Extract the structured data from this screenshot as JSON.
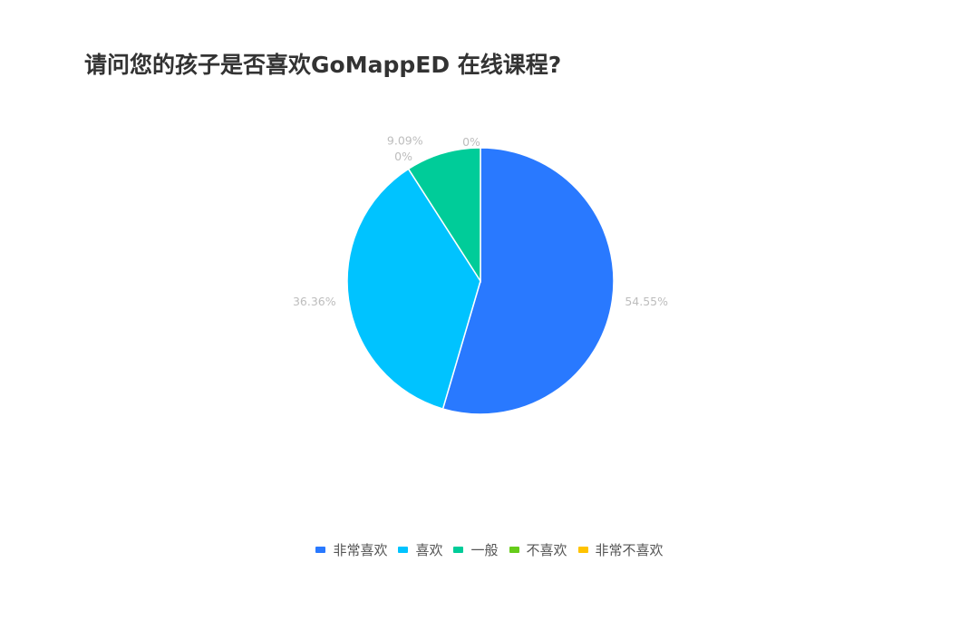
{
  "chart_data": {
    "type": "pie",
    "title": "请问您的孩子是否喜欢GoMappED 在线课程?",
    "categories": [
      "非常喜欢",
      "喜欢",
      "一般",
      "不喜欢",
      "非常不喜欢"
    ],
    "values": [
      54.55,
      36.36,
      9.09,
      0,
      0
    ],
    "labels": [
      "54.55%",
      "36.36%",
      "9.09%",
      "0%",
      "0%"
    ],
    "colors": [
      "#2979ff",
      "#00c3ff",
      "#00cc99",
      "#66cc1a",
      "#ffc300"
    ],
    "legend_position": "bottom"
  }
}
